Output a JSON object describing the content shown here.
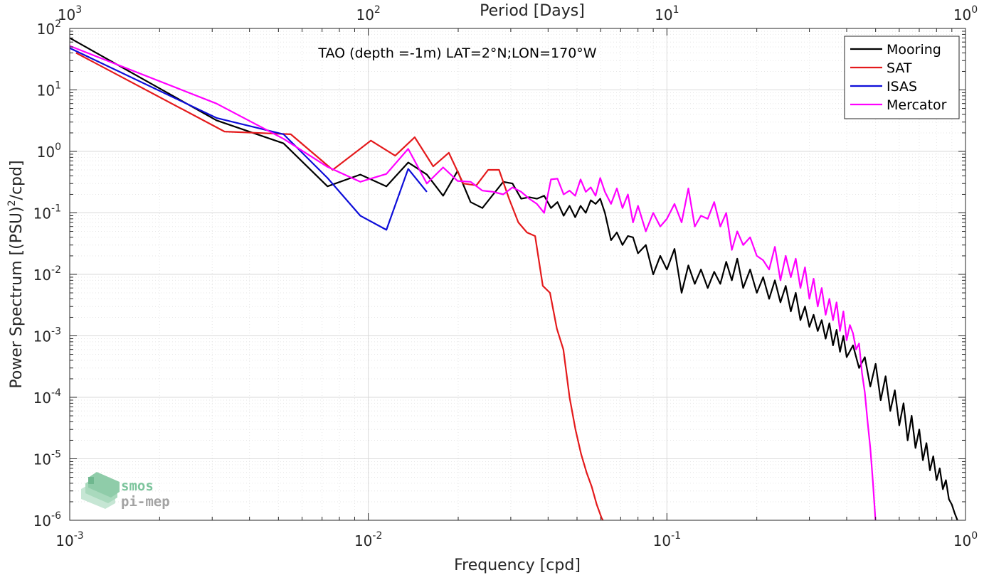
{
  "chart_data": {
    "type": "line",
    "title": "TAO (depth =-1m) LAT=2°N;LON=170°W",
    "xlabel": "Frequency [cpd]",
    "ylabel": "Power Spectrum [(PSU)",
    "ylabel_sup": "2",
    "ylabel_tail": "/cpd]",
    "top_xlabel": "Period [Days]",
    "xscale": "log",
    "yscale": "log",
    "xlim": [
      0.001,
      1
    ],
    "ylim": [
      1e-06,
      100
    ],
    "grid": true,
    "legend_position": "top-right",
    "x_ticks": [
      {
        "base": "10",
        "exp": "-3"
      },
      {
        "base": "10",
        "exp": "-2"
      },
      {
        "base": "10",
        "exp": "-1"
      },
      {
        "base": "10",
        "exp": "0"
      }
    ],
    "y_ticks": [
      {
        "base": "10",
        "exp": "-6"
      },
      {
        "base": "10",
        "exp": "-5"
      },
      {
        "base": "10",
        "exp": "-4"
      },
      {
        "base": "10",
        "exp": "-3"
      },
      {
        "base": "10",
        "exp": "-2"
      },
      {
        "base": "10",
        "exp": "-1"
      },
      {
        "base": "10",
        "exp": "0"
      },
      {
        "base": "10",
        "exp": "1"
      },
      {
        "base": "10",
        "exp": "2"
      }
    ],
    "top_ticks": [
      {
        "base": "10",
        "exp": "3"
      },
      {
        "base": "10",
        "exp": "2"
      },
      {
        "base": "10",
        "exp": "1"
      },
      {
        "base": "10",
        "exp": "0"
      }
    ],
    "series": [
      {
        "name": "Mooring",
        "color": "#000000",
        "x": [
          0.001,
          0.0031,
          0.0052,
          0.0073,
          0.0094,
          0.0115,
          0.0136,
          0.0157,
          0.0178,
          0.0199,
          0.022,
          0.0241,
          0.0262,
          0.0283,
          0.0304,
          0.0325,
          0.0346,
          0.0367,
          0.0388,
          0.0409,
          0.043,
          0.0451,
          0.0472,
          0.0493,
          0.0514,
          0.0535,
          0.0556,
          0.0577,
          0.0598,
          0.062,
          0.065,
          0.068,
          0.071,
          0.074,
          0.077,
          0.08,
          0.085,
          0.09,
          0.095,
          0.1,
          0.106,
          0.112,
          0.118,
          0.124,
          0.13,
          0.137,
          0.144,
          0.151,
          0.158,
          0.165,
          0.172,
          0.18,
          0.19,
          0.2,
          0.21,
          0.22,
          0.23,
          0.24,
          0.25,
          0.26,
          0.27,
          0.28,
          0.29,
          0.3,
          0.31,
          0.32,
          0.33,
          0.34,
          0.35,
          0.36,
          0.37,
          0.38,
          0.39,
          0.4,
          0.42,
          0.44,
          0.46,
          0.48,
          0.5,
          0.52,
          0.54,
          0.56,
          0.58,
          0.6,
          0.62,
          0.64,
          0.66,
          0.68,
          0.7,
          0.72,
          0.74,
          0.76,
          0.78,
          0.8,
          0.82,
          0.84,
          0.86,
          0.88,
          0.9,
          0.92,
          0.94,
          0.96
        ],
        "y": [
          70,
          3.2,
          1.35,
          0.27,
          0.42,
          0.27,
          0.66,
          0.42,
          0.19,
          0.48,
          0.15,
          0.12,
          0.2,
          0.32,
          0.3,
          0.17,
          0.18,
          0.17,
          0.19,
          0.12,
          0.15,
          0.09,
          0.13,
          0.085,
          0.13,
          0.1,
          0.16,
          0.14,
          0.17,
          0.1,
          0.036,
          0.048,
          0.03,
          0.042,
          0.04,
          0.022,
          0.03,
          0.01,
          0.02,
          0.012,
          0.026,
          0.005,
          0.014,
          0.007,
          0.012,
          0.006,
          0.011,
          0.007,
          0.016,
          0.008,
          0.018,
          0.006,
          0.012,
          0.005,
          0.009,
          0.004,
          0.008,
          0.0035,
          0.0065,
          0.0025,
          0.005,
          0.0018,
          0.003,
          0.0014,
          0.0022,
          0.0012,
          0.0018,
          0.0009,
          0.0016,
          0.0007,
          0.00125,
          0.00055,
          0.001,
          0.00045,
          0.0007,
          0.0003,
          0.00045,
          0.00015,
          0.00035,
          9e-05,
          0.00022,
          6e-05,
          0.00013,
          3.5e-05,
          8e-05,
          2e-05,
          5e-05,
          1.5e-05,
          3e-05,
          9.5e-06,
          1.8e-05,
          6.5e-06,
          1.1e-05,
          4.5e-06,
          7e-06,
          3.2e-06,
          4.5e-06,
          2.2e-06,
          1.8e-06,
          1.3e-06,
          1e-06,
          8.5e-07
        ]
      },
      {
        "name": "SAT",
        "color": "#e41a1c",
        "x": [
          0.00105,
          0.0033,
          0.0055,
          0.0076,
          0.0102,
          0.0123,
          0.0143,
          0.0165,
          0.0186,
          0.0208,
          0.023,
          0.0252,
          0.0274,
          0.0296,
          0.0318,
          0.034,
          0.0362,
          0.0384,
          0.0406,
          0.0428,
          0.045,
          0.0472,
          0.0494,
          0.0516,
          0.0538,
          0.056,
          0.0582,
          0.0604,
          0.0626
        ],
        "y": [
          40,
          2.1,
          1.9,
          0.5,
          1.5,
          0.85,
          1.7,
          0.57,
          0.95,
          0.3,
          0.28,
          0.5,
          0.5,
          0.17,
          0.07,
          0.048,
          0.042,
          0.0065,
          0.005,
          0.0013,
          0.0006,
          0.0001,
          3e-05,
          1.2e-05,
          6e-06,
          3.5e-06,
          1.8e-06,
          1.1e-06,
          8e-07
        ]
      },
      {
        "name": "ISAS",
        "color": "#0d0dd9",
        "x": [
          0.001,
          0.0031,
          0.0052,
          0.0073,
          0.0094,
          0.0115,
          0.0136,
          0.0157
        ],
        "y": [
          48,
          3.5,
          1.9,
          0.37,
          0.09,
          0.053,
          0.52,
          0.22
        ]
      },
      {
        "name": "Mercator",
        "color": "#ff00ff",
        "x": [
          0.001,
          0.0031,
          0.0052,
          0.0073,
          0.0094,
          0.0115,
          0.0136,
          0.0157,
          0.0178,
          0.0199,
          0.022,
          0.0241,
          0.0262,
          0.0283,
          0.0304,
          0.0325,
          0.0346,
          0.0367,
          0.0388,
          0.0409,
          0.043,
          0.0451,
          0.0472,
          0.0493,
          0.0514,
          0.0535,
          0.0556,
          0.0577,
          0.0598,
          0.062,
          0.065,
          0.068,
          0.071,
          0.074,
          0.077,
          0.08,
          0.085,
          0.09,
          0.095,
          0.1,
          0.106,
          0.112,
          0.118,
          0.124,
          0.13,
          0.137,
          0.144,
          0.151,
          0.158,
          0.165,
          0.172,
          0.18,
          0.19,
          0.2,
          0.21,
          0.22,
          0.23,
          0.24,
          0.25,
          0.26,
          0.27,
          0.28,
          0.29,
          0.3,
          0.31,
          0.32,
          0.33,
          0.34,
          0.35,
          0.36,
          0.37,
          0.38,
          0.39,
          0.4,
          0.41,
          0.42,
          0.43,
          0.44,
          0.45,
          0.46,
          0.47,
          0.48,
          0.49,
          0.5
        ],
        "y": [
          52,
          6,
          1.6,
          0.56,
          0.32,
          0.43,
          1.1,
          0.3,
          0.55,
          0.33,
          0.32,
          0.23,
          0.22,
          0.2,
          0.26,
          0.22,
          0.17,
          0.14,
          0.1,
          0.35,
          0.36,
          0.2,
          0.23,
          0.19,
          0.35,
          0.22,
          0.26,
          0.19,
          0.37,
          0.22,
          0.14,
          0.25,
          0.12,
          0.2,
          0.07,
          0.13,
          0.05,
          0.1,
          0.06,
          0.08,
          0.14,
          0.07,
          0.25,
          0.06,
          0.09,
          0.08,
          0.15,
          0.06,
          0.1,
          0.025,
          0.05,
          0.03,
          0.04,
          0.02,
          0.017,
          0.012,
          0.028,
          0.008,
          0.02,
          0.009,
          0.018,
          0.006,
          0.013,
          0.004,
          0.0085,
          0.003,
          0.006,
          0.0022,
          0.004,
          0.0018,
          0.0035,
          0.0012,
          0.0025,
          0.00085,
          0.0015,
          0.0011,
          0.0006,
          0.00075,
          0.00025,
          0.00012,
          4e-05,
          1.5e-05,
          4e-06,
          9e-07
        ]
      }
    ]
  },
  "logo": {
    "line1": "smos",
    "line2": "pi-mep"
  }
}
